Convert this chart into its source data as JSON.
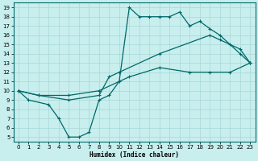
{
  "xlabel": "Humidex (Indice chaleur)",
  "bg_color": "#c8eeee",
  "grid_color": "#a8d8d8",
  "line_color": "#006868",
  "xlim": [
    -0.5,
    23.5
  ],
  "ylim": [
    4.5,
    19.5
  ],
  "xticks": [
    0,
    1,
    2,
    3,
    4,
    5,
    6,
    7,
    8,
    9,
    10,
    11,
    12,
    13,
    14,
    15,
    16,
    17,
    18,
    19,
    20,
    21,
    22,
    23
  ],
  "yticks": [
    5,
    6,
    7,
    8,
    9,
    10,
    11,
    12,
    13,
    14,
    15,
    16,
    17,
    18,
    19
  ],
  "curve1_x": [
    0,
    1,
    3,
    4,
    5,
    6,
    7,
    8,
    9,
    10,
    11,
    12,
    13,
    14,
    15,
    16,
    17,
    18,
    19,
    20,
    21,
    22,
    23
  ],
  "curve1_y": [
    10,
    9,
    8.5,
    7,
    5,
    5,
    5.5,
    9,
    9.5,
    11,
    19,
    18,
    18,
    18,
    18,
    18.5,
    17,
    17.5,
    16.7,
    16,
    15,
    14,
    13
  ],
  "curve2_x": [
    0,
    2,
    5,
    8,
    9,
    10,
    14,
    19,
    20,
    22,
    23
  ],
  "curve2_y": [
    10,
    9.5,
    9,
    9.5,
    11.5,
    12,
    14,
    16,
    15.5,
    14.5,
    13
  ],
  "curve3_x": [
    0,
    2,
    5,
    8,
    11,
    14,
    17,
    19,
    21,
    23
  ],
  "curve3_y": [
    10,
    9.5,
    9.5,
    10,
    11.5,
    12.5,
    12,
    12,
    12,
    13
  ]
}
